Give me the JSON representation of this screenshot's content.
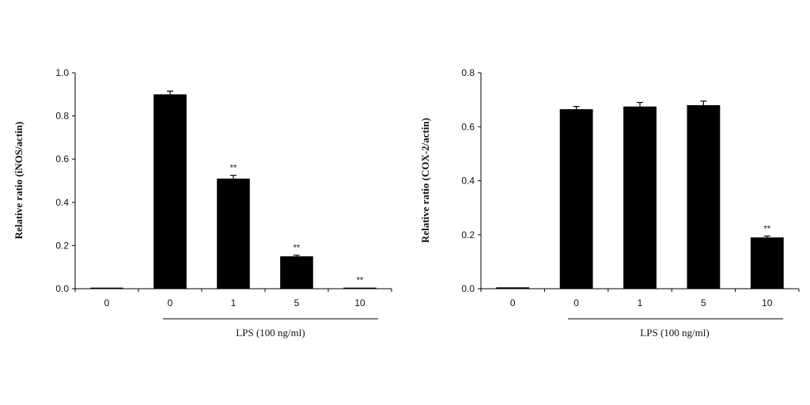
{
  "chart_data": [
    {
      "type": "bar",
      "ylabel": "Relative ratio (iNOS/actin)",
      "categories": [
        "0",
        "0",
        "1",
        "5",
        "10"
      ],
      "group_label": "LPS (100 ng/ml)",
      "group_spans_categories": [
        1,
        4
      ],
      "values": [
        0.005,
        0.9,
        0.51,
        0.15,
        0.005
      ],
      "errors": [
        0.0,
        0.015,
        0.015,
        0.005,
        0.0
      ],
      "annotations": [
        "",
        "",
        "**",
        "**",
        "**"
      ],
      "ylim": [
        0,
        1.0
      ],
      "yticks": [
        "0.0",
        "0.2",
        "0.4",
        "0.6",
        "0.8",
        "1.0"
      ],
      "grid": false,
      "bar_color": "#000000"
    },
    {
      "type": "bar",
      "ylabel": "Relative ratio (COX-2/actin)",
      "categories": [
        "0",
        "0",
        "1",
        "5",
        "10"
      ],
      "group_label": "LPS (100 ng/ml)",
      "group_spans_categories": [
        1,
        4
      ],
      "values": [
        0.005,
        0.665,
        0.675,
        0.68,
        0.19
      ],
      "errors": [
        0.0,
        0.01,
        0.015,
        0.015,
        0.005
      ],
      "annotations": [
        "",
        "",
        "",
        "",
        "**"
      ],
      "ylim": [
        0,
        0.8
      ],
      "yticks": [
        "0.0",
        "0.2",
        "0.4",
        "0.6",
        "0.8"
      ],
      "grid": false,
      "bar_color": "#000000"
    }
  ]
}
